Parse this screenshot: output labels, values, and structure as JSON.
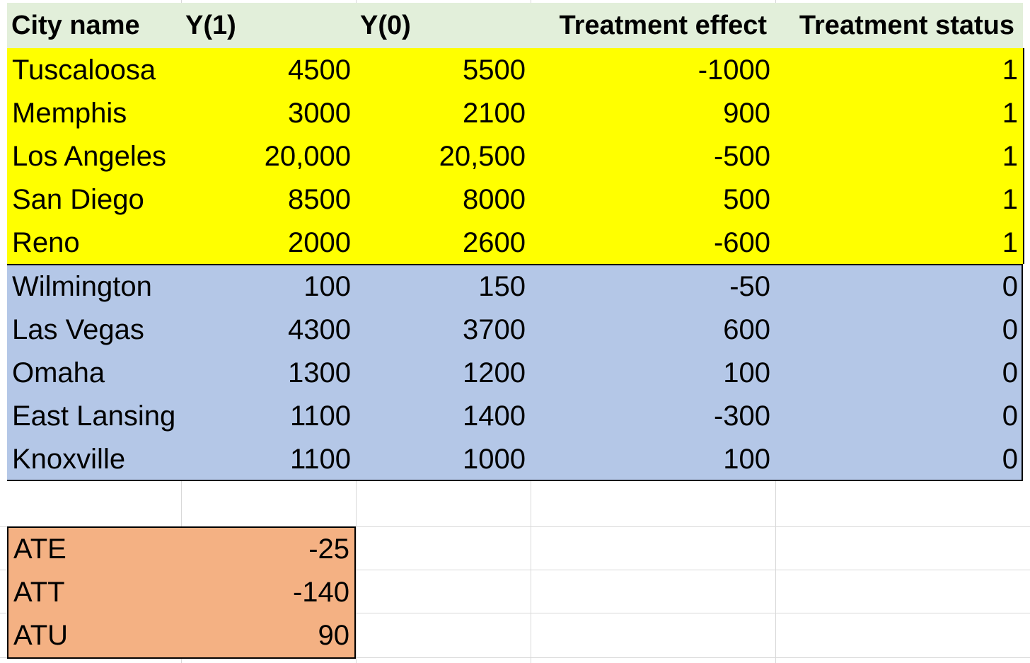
{
  "colors": {
    "header_bg": "#e2efda",
    "treated_bg": "#ffff00",
    "control_bg": "#b4c7e7",
    "summary_bg": "#f4b183",
    "gridline": "#d9d9d9"
  },
  "header": {
    "city": "City name",
    "y1": "Y(1)",
    "y0": "Y(0)",
    "effect": "Treatment effect",
    "status": "Treatment status"
  },
  "treated_rows": [
    {
      "city": "Tuscaloosa",
      "y1": "4500",
      "y0": "5500",
      "effect": "-1000",
      "status": "1"
    },
    {
      "city": "Memphis",
      "y1": "3000",
      "y0": "2100",
      "effect": "900",
      "status": "1"
    },
    {
      "city": "Los Angeles",
      "y1": "20,000",
      "y0": "20,500",
      "effect": "-500",
      "status": "1"
    },
    {
      "city": "San Diego",
      "y1": "8500",
      "y0": "8000",
      "effect": "500",
      "status": "1"
    },
    {
      "city": "Reno",
      "y1": "2000",
      "y0": "2600",
      "effect": "-600",
      "status": "1"
    }
  ],
  "control_rows": [
    {
      "city": "Wilmington",
      "y1": "100",
      "y0": "150",
      "effect": "-50",
      "status": "0"
    },
    {
      "city": "Las Vegas",
      "y1": "4300",
      "y0": "3700",
      "effect": "600",
      "status": "0"
    },
    {
      "city": "Omaha",
      "y1": "1300",
      "y0": "1200",
      "effect": "100",
      "status": "0"
    },
    {
      "city": "East Lansing",
      "y1": "1100",
      "y0": "1400",
      "effect": "-300",
      "status": "0"
    },
    {
      "city": "Knoxville",
      "y1": "1100",
      "y0": "1000",
      "effect": "100",
      "status": "0"
    }
  ],
  "summary": [
    {
      "label": "ATE",
      "value": "-25"
    },
    {
      "label": "ATT",
      "value": "-140"
    },
    {
      "label": "ATU",
      "value": "90"
    }
  ]
}
